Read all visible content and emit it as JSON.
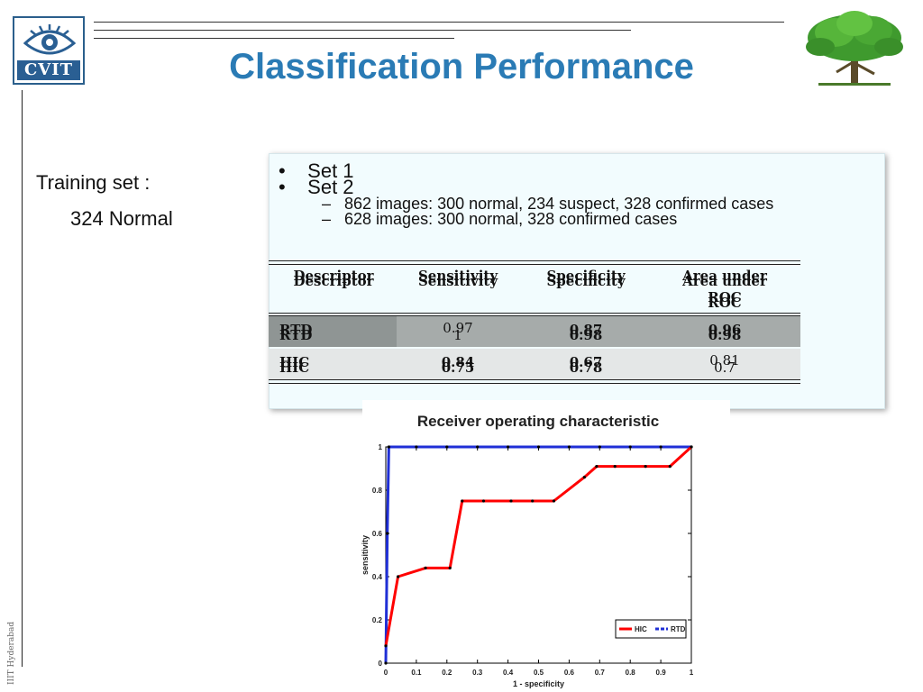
{
  "header": {
    "logo_text": "CVIT",
    "title": "Classification Performance"
  },
  "sidebar": {
    "vertical_text": "IIIT Hyderabad"
  },
  "left": {
    "training_label": "Training set :",
    "training_value": "324 Normal"
  },
  "panel": {
    "set1": "Set 1",
    "set1_detail": "862 images: 300 normal, 234 suspect, 328 confirmed cases",
    "set2": "Set 2",
    "set2_detail": "628 images: 300 normal, 328 confirmed cases"
  },
  "table": {
    "headers": [
      "Descriptor",
      "Sensitivity",
      "Specificity",
      "Area under ROC"
    ],
    "header_line1": "Area under",
    "header_line2": "ROC",
    "rows": [
      {
        "descriptor": "RTD",
        "set1": [
          "0.97",
          "0.87",
          "0.96"
        ],
        "set2": [
          "1",
          "0.98",
          "0.98"
        ]
      },
      {
        "descriptor": "HIC",
        "set1": [
          "0.84",
          "0.67",
          "0.81"
        ],
        "set2": [
          "0.75",
          "0.78",
          "0.7"
        ]
      }
    ]
  },
  "chart_data": {
    "type": "line",
    "title": "Receiver operating characteristic",
    "xlabel": "1 - specificity",
    "ylabel": "sensitivity",
    "xlim": [
      0,
      1
    ],
    "ylim": [
      0,
      1
    ],
    "xticks": [
      "0",
      "0.1",
      "0.2",
      "0.3",
      "0.4",
      "0.5",
      "0.6",
      "0.7",
      "0.8",
      "0.9",
      "1"
    ],
    "yticks": [
      "0",
      "0.2",
      "0.4",
      "0.6",
      "0.8",
      "1"
    ],
    "legend_position": "bottom-right",
    "series": [
      {
        "name": "HIC",
        "color": "#ff0000",
        "x": [
          0,
          0.04,
          0.13,
          0.21,
          0.25,
          0.32,
          0.41,
          0.48,
          0.55,
          0.65,
          0.69,
          0.75,
          0.85,
          0.93,
          1
        ],
        "y": [
          0.08,
          0.4,
          0.44,
          0.44,
          0.75,
          0.75,
          0.75,
          0.75,
          0.75,
          0.86,
          0.91,
          0.91,
          0.91,
          0.91,
          1
        ]
      },
      {
        "name": "RTD",
        "color": "#1f2fd6",
        "x": [
          0,
          0.005,
          0.01,
          0.1,
          0.2,
          0.3,
          0.4,
          0.5,
          0.6,
          0.7,
          0.8,
          0.9,
          1
        ],
        "y": [
          0,
          0.6,
          1,
          1,
          1,
          1,
          1,
          1,
          1,
          1,
          1,
          1,
          1
        ]
      }
    ]
  }
}
